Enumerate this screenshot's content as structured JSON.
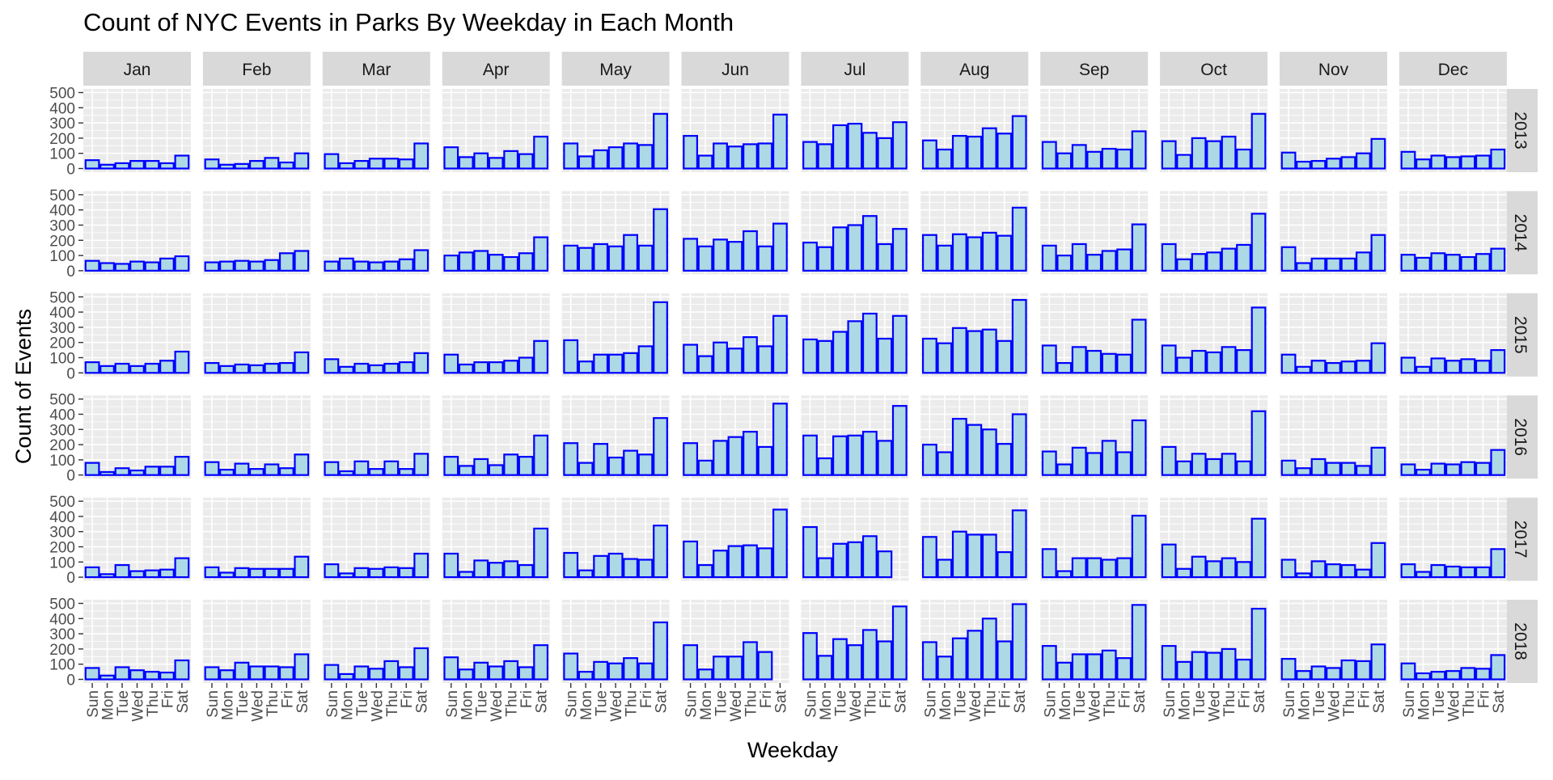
{
  "chart_data": {
    "type": "bar",
    "title": "Count of NYC Events in Parks By Weekday in Each Month",
    "xlabel": "Weekday",
    "ylabel": "Count of Events",
    "ylim": [
      0,
      500
    ],
    "y_ticks": [
      0,
      100,
      200,
      300,
      400,
      500
    ],
    "grid": true,
    "facet_columns": [
      "Jan",
      "Feb",
      "Mar",
      "Apr",
      "May",
      "Jun",
      "Jul",
      "Aug",
      "Sep",
      "Oct",
      "Nov",
      "Dec"
    ],
    "facet_rows": [
      "2013",
      "2014",
      "2015",
      "2016",
      "2017",
      "2018"
    ],
    "categories": [
      "Sun",
      "Mon",
      "Tue",
      "Wed",
      "Thu",
      "Fri",
      "Sat"
    ],
    "bar_fill": "#add8e6",
    "bar_outline": "#0000ff",
    "panel_background": "#ebebeb",
    "strip_background": "#d9d9d9",
    "values": {
      "2013": {
        "Jan": [
          55,
          25,
          35,
          50,
          50,
          35,
          85
        ],
        "Feb": [
          60,
          25,
          30,
          50,
          70,
          40,
          100
        ],
        "Mar": [
          95,
          35,
          50,
          65,
          65,
          60,
          165
        ],
        "Apr": [
          140,
          75,
          100,
          70,
          115,
          95,
          210
        ],
        "May": [
          165,
          80,
          120,
          140,
          165,
          155,
          360
        ],
        "Jun": [
          215,
          85,
          165,
          145,
          160,
          165,
          355
        ],
        "Jul": [
          175,
          160,
          285,
          295,
          235,
          200,
          305
        ],
        "Aug": [
          185,
          125,
          215,
          210,
          265,
          230,
          345
        ],
        "Sep": [
          175,
          100,
          155,
          110,
          130,
          125,
          245
        ],
        "Oct": [
          180,
          90,
          200,
          180,
          210,
          125,
          360
        ],
        "Nov": [
          105,
          45,
          50,
          65,
          75,
          100,
          195
        ],
        "Dec": [
          110,
          60,
          85,
          75,
          80,
          85,
          125
        ]
      },
      "2014": {
        "Jan": [
          65,
          50,
          45,
          60,
          55,
          80,
          95
        ],
        "Feb": [
          55,
          60,
          65,
          60,
          70,
          115,
          130
        ],
        "Mar": [
          60,
          80,
          60,
          55,
          60,
          75,
          135
        ],
        "Apr": [
          100,
          120,
          130,
          105,
          90,
          115,
          220
        ],
        "May": [
          165,
          150,
          175,
          160,
          235,
          165,
          405
        ],
        "Jun": [
          210,
          160,
          205,
          190,
          260,
          160,
          310
        ],
        "Jul": [
          185,
          155,
          285,
          300,
          360,
          175,
          275
        ],
        "Aug": [
          235,
          165,
          240,
          220,
          250,
          230,
          415
        ],
        "Sep": [
          165,
          100,
          175,
          105,
          130,
          140,
          305
        ],
        "Oct": [
          175,
          75,
          110,
          120,
          145,
          170,
          375
        ],
        "Nov": [
          155,
          50,
          80,
          80,
          80,
          120,
          235
        ],
        "Dec": [
          105,
          85,
          115,
          105,
          90,
          110,
          145
        ]
      },
      "2015": {
        "Jan": [
          70,
          45,
          60,
          45,
          60,
          80,
          140
        ],
        "Feb": [
          65,
          45,
          55,
          50,
          60,
          65,
          135
        ],
        "Mar": [
          90,
          40,
          60,
          50,
          60,
          70,
          130
        ],
        "Apr": [
          120,
          55,
          70,
          70,
          80,
          100,
          210
        ],
        "May": [
          215,
          75,
          120,
          120,
          130,
          175,
          465
        ],
        "Jun": [
          185,
          110,
          200,
          160,
          235,
          175,
          375
        ],
        "Jul": [
          220,
          210,
          270,
          340,
          390,
          225,
          375
        ],
        "Aug": [
          225,
          195,
          295,
          275,
          285,
          210,
          480
        ],
        "Sep": [
          180,
          65,
          170,
          145,
          125,
          120,
          350
        ],
        "Oct": [
          180,
          100,
          145,
          135,
          170,
          150,
          430
        ],
        "Nov": [
          120,
          40,
          80,
          65,
          75,
          80,
          195
        ],
        "Dec": [
          100,
          40,
          95,
          80,
          90,
          80,
          150
        ]
      },
      "2016": {
        "Jan": [
          80,
          20,
          45,
          30,
          55,
          55,
          120
        ],
        "Feb": [
          85,
          35,
          75,
          40,
          70,
          45,
          135
        ],
        "Mar": [
          85,
          25,
          90,
          40,
          90,
          40,
          140
        ],
        "Apr": [
          120,
          60,
          105,
          65,
          135,
          120,
          260
        ],
        "May": [
          210,
          80,
          205,
          115,
          160,
          135,
          375
        ],
        "Jun": [
          210,
          95,
          225,
          250,
          285,
          185,
          470
        ],
        "Jul": [
          260,
          110,
          255,
          260,
          285,
          225,
          455
        ],
        "Aug": [
          200,
          150,
          370,
          330,
          300,
          205,
          400
        ],
        "Sep": [
          155,
          70,
          180,
          145,
          225,
          150,
          360
        ],
        "Oct": [
          185,
          90,
          140,
          105,
          140,
          90,
          420
        ],
        "Nov": [
          95,
          45,
          105,
          80,
          80,
          60,
          180
        ],
        "Dec": [
          70,
          35,
          75,
          70,
          85,
          80,
          165
        ]
      },
      "2017": {
        "Jan": [
          65,
          20,
          80,
          40,
          45,
          50,
          125
        ],
        "Feb": [
          65,
          30,
          60,
          55,
          55,
          55,
          135
        ],
        "Mar": [
          85,
          25,
          60,
          55,
          65,
          60,
          155
        ],
        "Apr": [
          155,
          35,
          110,
          95,
          105,
          80,
          320
        ],
        "May": [
          160,
          45,
          140,
          155,
          120,
          115,
          340
        ],
        "Jun": [
          235,
          80,
          175,
          205,
          210,
          190,
          445
        ],
        "Jul": [
          330,
          125,
          220,
          230,
          270,
          170,
          0
        ],
        "Aug": [
          265,
          115,
          300,
          280,
          280,
          165,
          440
        ],
        "Sep": [
          185,
          40,
          125,
          125,
          115,
          125,
          405
        ],
        "Oct": [
          215,
          55,
          135,
          105,
          125,
          100,
          385
        ],
        "Nov": [
          115,
          25,
          105,
          85,
          80,
          50,
          225
        ],
        "Dec": [
          85,
          35,
          80,
          70,
          65,
          65,
          185
        ]
      },
      "2018": {
        "Jan": [
          75,
          25,
          80,
          60,
          50,
          45,
          125
        ],
        "Feb": [
          80,
          60,
          110,
          85,
          85,
          80,
          165
        ],
        "Mar": [
          95,
          35,
          85,
          70,
          120,
          80,
          205
        ],
        "Apr": [
          145,
          65,
          110,
          85,
          120,
          80,
          225
        ],
        "May": [
          170,
          50,
          115,
          105,
          140,
          105,
          375
        ],
        "Jun": [
          225,
          65,
          150,
          150,
          245,
          180,
          0
        ],
        "Jul": [
          305,
          155,
          265,
          225,
          325,
          250,
          480
        ],
        "Aug": [
          245,
          150,
          270,
          320,
          400,
          250,
          495
        ],
        "Sep": [
          220,
          110,
          165,
          165,
          190,
          140,
          490
        ],
        "Oct": [
          220,
          115,
          180,
          175,
          200,
          130,
          465
        ],
        "Nov": [
          135,
          55,
          85,
          75,
          125,
          120,
          230
        ],
        "Dec": [
          105,
          40,
          50,
          55,
          75,
          70,
          160
        ]
      }
    }
  }
}
